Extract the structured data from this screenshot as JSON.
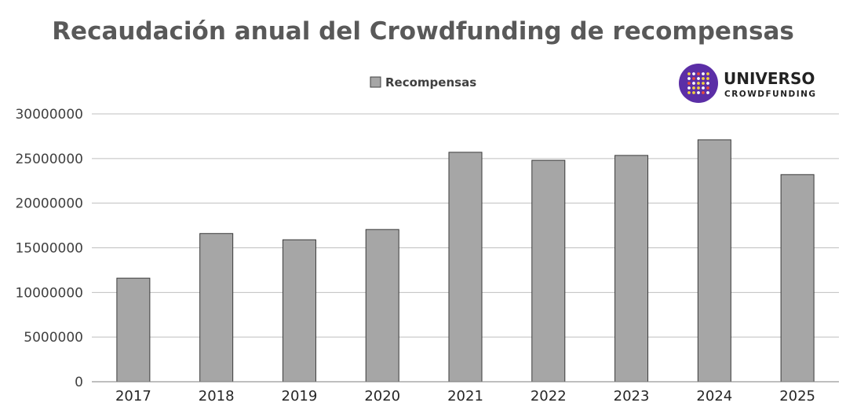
{
  "chart_data": {
    "type": "bar",
    "title": "Recaudación anual del Crowdfunding de recompensas",
    "categories": [
      "2017",
      "2018",
      "2019",
      "2020",
      "2021",
      "2022",
      "2023",
      "2024",
      "2025"
    ],
    "series": [
      {
        "name": "Recompensas",
        "values": [
          11600000,
          16600000,
          15900000,
          17050000,
          25700000,
          24800000,
          25350000,
          27100000,
          23200000
        ],
        "color": "#a6a6a6"
      }
    ],
    "yticks": [
      "0",
      "5000000",
      "10000000",
      "15000000",
      "20000000",
      "25000000",
      "30000000"
    ],
    "ylim": [
      0,
      30000000
    ],
    "grid": true,
    "legend": "top-center"
  },
  "logo": {
    "word1": "UNIVERSO",
    "word2": "CROWDFUNDING",
    "icon": "universo-crowdfunding-logo-icon",
    "circle_color": "#5b2ea6"
  }
}
